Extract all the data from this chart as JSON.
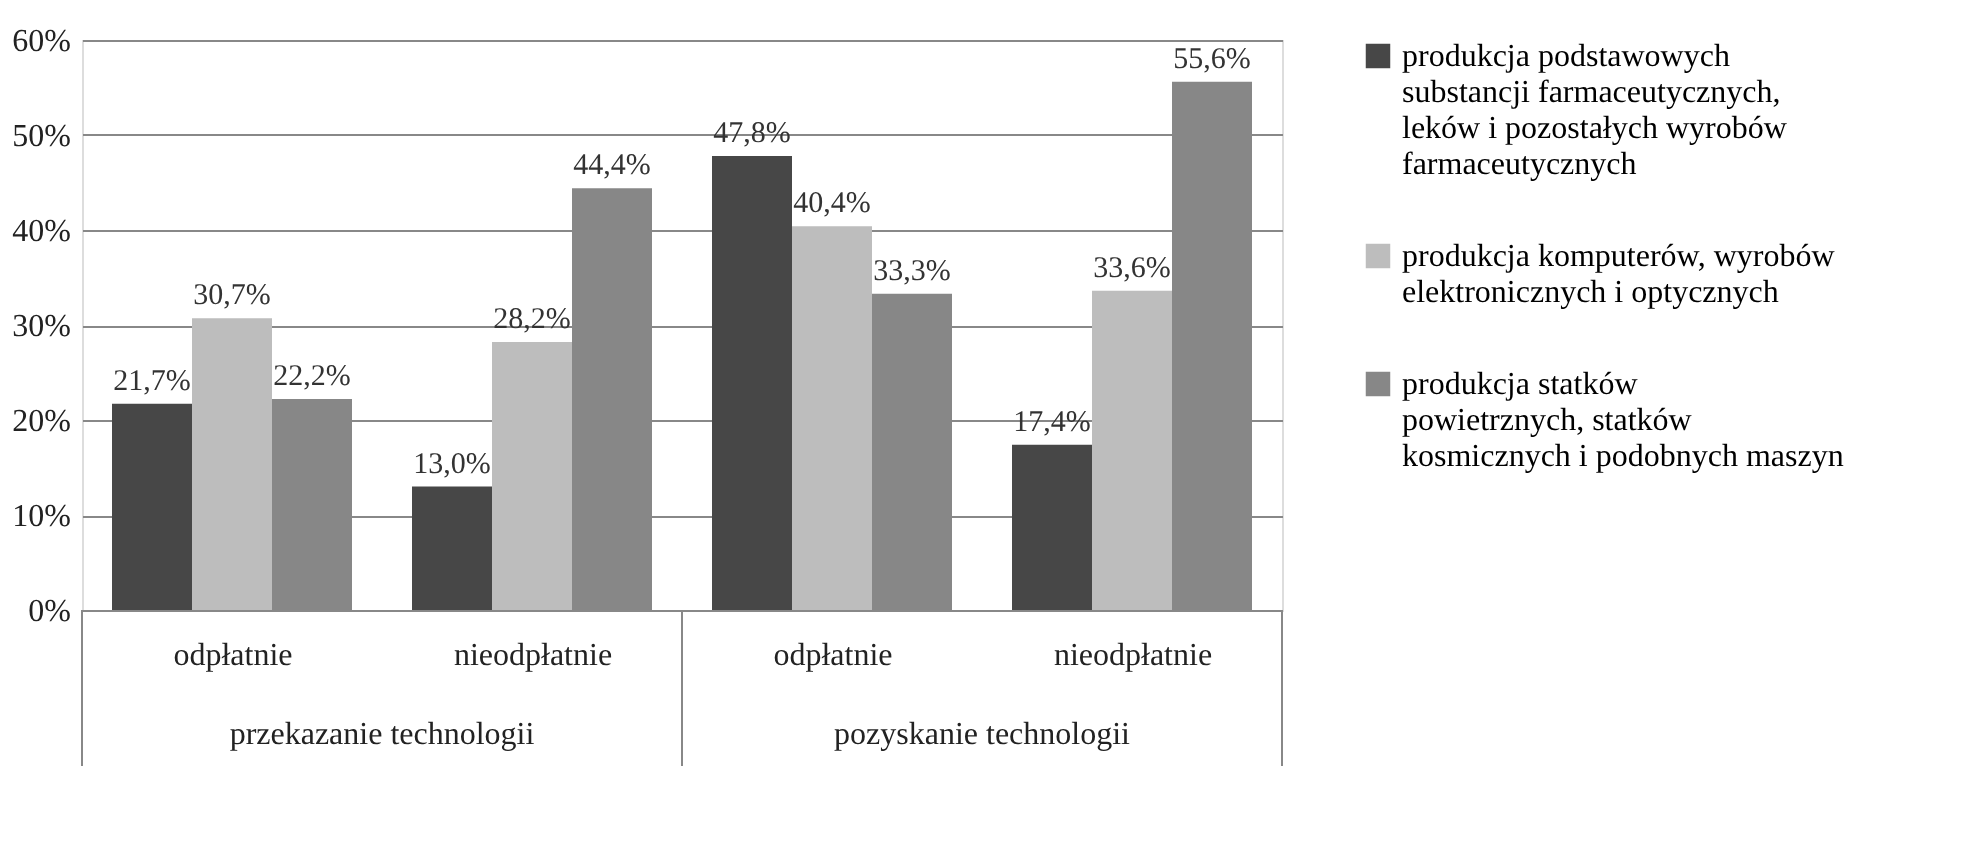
{
  "chart_data": {
    "type": "bar",
    "categories": [
      "odpłatnie",
      "nieodpłatnie",
      "odpłatnie",
      "nieodpłatnie"
    ],
    "series": [
      {
        "name": "produkcja podstawowych substancji farmaceutycznych, leków i pozostałych wyrobów farmaceutycznych",
        "color": "#474747",
        "values": [
          21.7,
          13.0,
          47.8,
          17.4
        ],
        "value_labels": [
          "21,7%",
          "13,0%",
          "47,8%",
          "17,4%"
        ]
      },
      {
        "name": "produkcja komputerów, wyrobów elektronicznych i optycznych",
        "color": "#bdbdbd",
        "values": [
          30.7,
          28.2,
          40.4,
          33.6
        ],
        "value_labels": [
          "30,7%",
          "28,2%",
          "40,4%",
          "33,6%"
        ]
      },
      {
        "name": "produkcja statków powietrznych, statków kosmicznych i podobnych maszyn",
        "color": "#878787",
        "values": [
          22.2,
          44.4,
          33.3,
          55.6
        ],
        "value_labels": [
          "22,2%",
          "44,4%",
          "33,3%",
          "55,6%"
        ]
      }
    ],
    "annotations": [
      "przekazanie technologii",
      "pozyskanie technologii"
    ],
    "ylim": [
      0,
      60
    ],
    "yticks": [
      {
        "value": 0,
        "label": "0%"
      },
      {
        "value": 10,
        "label": "10%"
      },
      {
        "value": 20,
        "label": "20%"
      },
      {
        "value": 30,
        "label": "30%"
      },
      {
        "value": 40,
        "label": "40%"
      },
      {
        "value": 50,
        "label": "50%"
      },
      {
        "value": 60,
        "label": "60%"
      }
    ],
    "grid": "y",
    "legend": "right"
  }
}
